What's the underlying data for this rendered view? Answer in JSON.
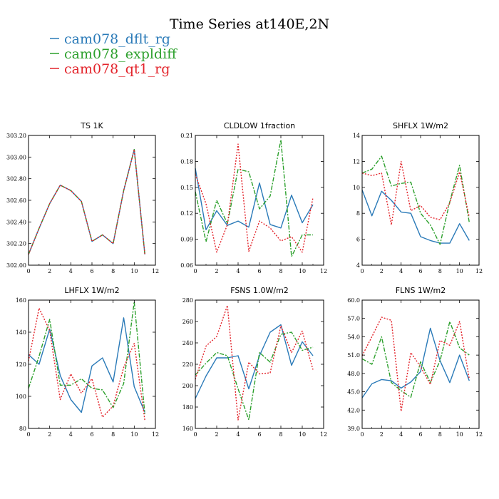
{
  "title": "Time Series at140E,2N",
  "colors": {
    "blue": "#2a7ab8",
    "green": "#2ca02c",
    "red": "#e3242b"
  },
  "legend": [
    {
      "label": "cam078_dflt_rg",
      "color": "#2a7ab8"
    },
    {
      "label": "cam078_expldiff",
      "color": "#2ca02c"
    },
    {
      "label": "cam078_qt1_rg",
      "color": "#e3242b"
    }
  ],
  "chart_data": [
    {
      "type": "line",
      "title": "TS   1K",
      "x": [
        0,
        1,
        2,
        3,
        4,
        5,
        6,
        7,
        8,
        9,
        10,
        11
      ],
      "xlim": [
        0,
        12
      ],
      "xticks": [
        0,
        2,
        4,
        6,
        8,
        10,
        12
      ],
      "ylim": [
        302.0,
        303.2
      ],
      "yticks": [
        302.0,
        302.2,
        302.4,
        302.6,
        302.8,
        303.0,
        303.2
      ],
      "ytick_labels": [
        "302.00",
        "302.20",
        "302.40",
        "302.60",
        "302.80",
        "303.00",
        "303.20"
      ],
      "series": [
        {
          "name": "cam078_dflt_rg",
          "values": [
            302.1,
            302.34,
            302.57,
            302.74,
            302.69,
            302.59,
            302.22,
            302.28,
            302.2,
            302.69,
            303.07,
            302.1
          ]
        },
        {
          "name": "cam078_expldiff",
          "values": [
            302.1,
            302.34,
            302.57,
            302.74,
            302.69,
            302.59,
            302.22,
            302.28,
            302.2,
            302.69,
            303.07,
            302.1
          ]
        },
        {
          "name": "cam078_qt1_rg",
          "values": [
            302.1,
            302.34,
            302.57,
            302.74,
            302.69,
            302.59,
            302.22,
            302.28,
            302.2,
            302.69,
            303.07,
            302.1
          ]
        }
      ]
    },
    {
      "type": "line",
      "title": "CLDLOW   1fraction",
      "x": [
        0,
        1,
        2,
        3,
        4,
        5,
        6,
        7,
        8,
        9,
        10,
        11
      ],
      "xlim": [
        0,
        12
      ],
      "xticks": [
        0,
        2,
        4,
        6,
        8,
        10,
        12
      ],
      "ylim": [
        0.06,
        0.21
      ],
      "yticks": [
        0.06,
        0.09,
        0.12,
        0.15,
        0.18,
        0.21
      ],
      "ytick_labels": [
        "0.06",
        "0.09",
        "0.12",
        "0.15",
        "0.18",
        "0.21"
      ],
      "series": [
        {
          "name": "cam078_dflt_rg",
          "values": [
            0.172,
            0.101,
            0.123,
            0.106,
            0.111,
            0.104,
            0.155,
            0.107,
            0.103,
            0.141,
            0.109,
            0.13
          ]
        },
        {
          "name": "cam078_expldiff",
          "values": [
            0.145,
            0.087,
            0.135,
            0.108,
            0.171,
            0.168,
            0.125,
            0.14,
            0.205,
            0.07,
            0.095,
            0.095
          ]
        },
        {
          "name": "cam078_qt1_rg",
          "values": [
            0.165,
            0.131,
            0.075,
            0.107,
            0.2,
            0.076,
            0.111,
            0.103,
            0.088,
            0.093,
            0.075,
            0.138
          ]
        }
      ]
    },
    {
      "type": "line",
      "title": "SHFLX   1W/m2",
      "x": [
        0,
        1,
        2,
        3,
        4,
        5,
        6,
        7,
        8,
        9,
        10,
        11
      ],
      "xlim": [
        0,
        12
      ],
      "xticks": [
        0,
        2,
        4,
        6,
        8,
        10,
        12
      ],
      "ylim": [
        4,
        14
      ],
      "yticks": [
        4,
        6,
        8,
        10,
        12,
        14
      ],
      "ytick_labels": [
        "4",
        "6",
        "8",
        "10",
        "12",
        "14"
      ],
      "series": [
        {
          "name": "cam078_dflt_rg",
          "values": [
            9.8,
            7.8,
            9.7,
            9.0,
            8.1,
            8.0,
            6.2,
            5.9,
            5.7,
            5.7,
            7.2,
            5.9
          ]
        },
        {
          "name": "cam078_expldiff",
          "values": [
            11.1,
            11.4,
            12.4,
            10.1,
            10.3,
            10.4,
            8.0,
            7.1,
            5.6,
            8.9,
            11.7,
            7.3
          ]
        },
        {
          "name": "cam078_qt1_rg",
          "values": [
            11.1,
            10.9,
            11.1,
            7.1,
            12.0,
            8.2,
            8.6,
            7.7,
            7.5,
            8.8,
            11.2,
            7.7
          ]
        }
      ]
    },
    {
      "type": "line",
      "title": "LHFLX   1W/m2",
      "x": [
        0,
        1,
        2,
        3,
        4,
        5,
        6,
        7,
        8,
        9,
        10,
        11
      ],
      "xlim": [
        0,
        12
      ],
      "xticks": [
        0,
        2,
        4,
        6,
        8,
        10,
        12
      ],
      "ylim": [
        80,
        160
      ],
      "yticks": [
        80,
        100,
        120,
        140,
        160
      ],
      "ytick_labels": [
        "80",
        "100",
        "120",
        "140",
        "160"
      ],
      "series": [
        {
          "name": "cam078_dflt_rg",
          "values": [
            126,
            120,
            142,
            113,
            98,
            90,
            119,
            124,
            109,
            149,
            106,
            90
          ]
        },
        {
          "name": "cam078_expldiff",
          "values": [
            105,
            125,
            148,
            107,
            107,
            111,
            105,
            104,
            93,
            108,
            159,
            89
          ]
        },
        {
          "name": "cam078_qt1_rg",
          "values": [
            122,
            155,
            141,
            98,
            114,
            102,
            111,
            87,
            94,
            118,
            133,
            85
          ]
        }
      ]
    },
    {
      "type": "line",
      "title": "FSNS   1.0W/m2",
      "x": [
        0,
        1,
        2,
        3,
        4,
        5,
        6,
        7,
        8,
        9,
        10,
        11
      ],
      "xlim": [
        0,
        12
      ],
      "xticks": [
        0,
        2,
        4,
        6,
        8,
        10,
        12
      ],
      "ylim": [
        160,
        280
      ],
      "yticks": [
        160,
        180,
        200,
        220,
        240,
        260,
        280
      ],
      "ytick_labels": [
        "160",
        "180",
        "200",
        "220",
        "240",
        "260",
        "280"
      ],
      "series": [
        {
          "name": "cam078_dflt_rg",
          "values": [
            188,
            209,
            226,
            226,
            228,
            197,
            228,
            250,
            257,
            219,
            241,
            228
          ]
        },
        {
          "name": "cam078_expldiff",
          "values": [
            210,
            221,
            231,
            228,
            197,
            168,
            231,
            222,
            248,
            250,
            233,
            236
          ]
        },
        {
          "name": "cam078_qt1_rg",
          "values": [
            206,
            237,
            246,
            275,
            168,
            222,
            211,
            212,
            256,
            231,
            251,
            215
          ]
        }
      ]
    },
    {
      "type": "line",
      "title": "FLNS   1W/m2",
      "x": [
        0,
        1,
        2,
        3,
        4,
        5,
        6,
        7,
        8,
        9,
        10,
        11
      ],
      "xlim": [
        0,
        12
      ],
      "xticks": [
        0,
        2,
        4,
        6,
        8,
        10,
        12
      ],
      "ylim": [
        39,
        60
      ],
      "yticks": [
        39,
        42,
        45,
        48,
        51,
        54,
        57,
        60
      ],
      "ytick_labels": [
        "39.0",
        "42.0",
        "45.0",
        "48.0",
        "51.0",
        "54.0",
        "57.0",
        "60.0"
      ],
      "series": [
        {
          "name": "cam078_dflt_rg",
          "values": [
            44.0,
            46.3,
            47.0,
            46.8,
            45.6,
            46.6,
            48.3,
            55.4,
            50.1,
            46.5,
            51.0,
            46.8
          ]
        },
        {
          "name": "cam078_expldiff",
          "values": [
            50.4,
            49.5,
            54.0,
            46.5,
            45.2,
            44.1,
            49.9,
            46.5,
            50.1,
            56.5,
            52.2,
            51.0
          ]
        },
        {
          "name": "cam078_qt1_rg",
          "values": [
            50.9,
            54.0,
            57.2,
            56.7,
            41.8,
            51.4,
            49.1,
            46.2,
            53.4,
            52.6,
            56.5,
            47.1
          ]
        }
      ]
    }
  ]
}
